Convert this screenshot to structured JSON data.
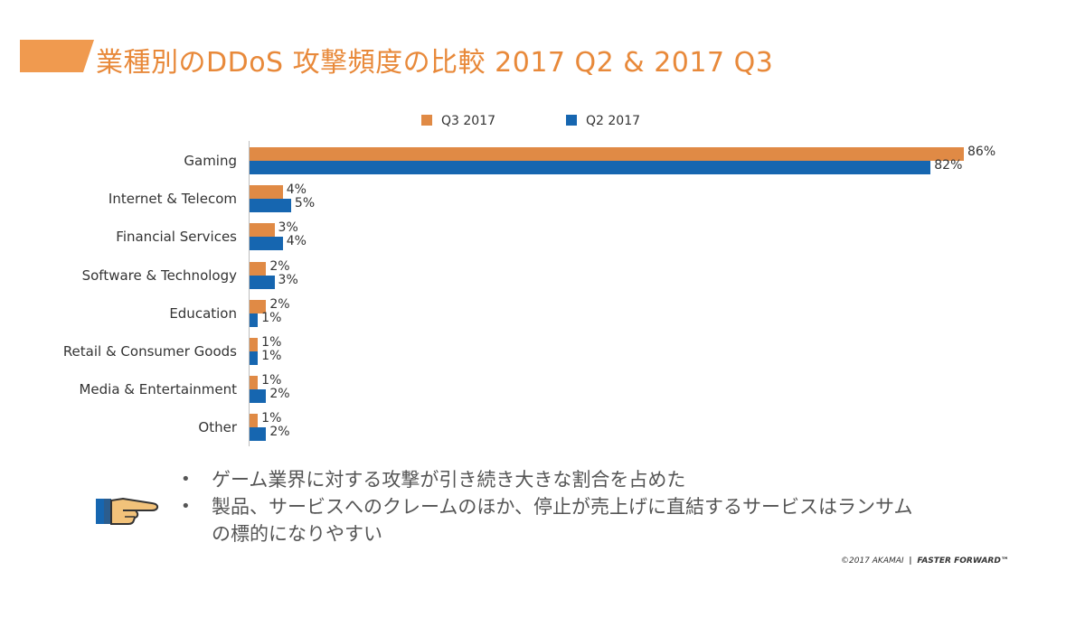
{
  "title": "業種別のDDoS 攻撃頻度の比較 2017 Q2 & 2017 Q3",
  "colors": {
    "q3": "#e08a45",
    "q2": "#1666b0",
    "title": "#e8893a"
  },
  "chart_data": {
    "type": "bar",
    "orientation": "horizontal",
    "categories": [
      "Gaming",
      "Internet & Telecom",
      "Financial Services",
      "Software & Technology",
      "Education",
      "Retail & Consumer Goods",
      "Media & Entertainment",
      "Other"
    ],
    "series": [
      {
        "name": "Q3 2017",
        "values": [
          86,
          4,
          3,
          2,
          2,
          1,
          1,
          1
        ],
        "labels": [
          "86%",
          "4%",
          "3%",
          "2%",
          "2%",
          "1%",
          "1%",
          "1%"
        ]
      },
      {
        "name": "Q2 2017",
        "values": [
          82,
          5,
          4,
          3,
          1,
          1,
          2,
          2
        ],
        "labels": [
          "82%",
          "5%",
          "4%",
          "3%",
          "1%",
          "1%",
          "2%",
          "2%"
        ]
      }
    ],
    "xlim": [
      0,
      86
    ],
    "legend": "top"
  },
  "bullets": [
    "ゲーム業界に対する攻撃が引き続き大きな割合を占めた",
    "製品、サービスへのクレームのほか、停止が売上げに直結するサービスはランサム",
    "の標的になりやすい"
  ],
  "bullet_mark": "•",
  "footer": {
    "copyright": "©2017 AKAMAI",
    "separator": "|",
    "tagline": "FASTER FORWARD™"
  }
}
